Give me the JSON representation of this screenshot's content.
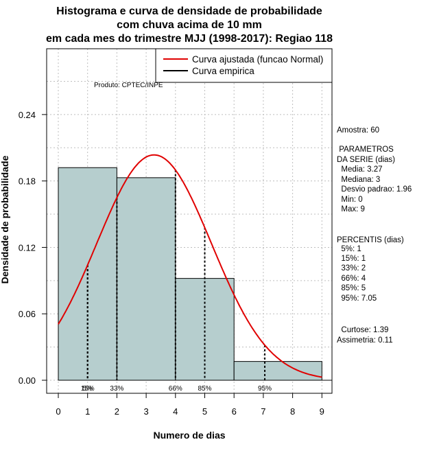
{
  "chart_data": {
    "type": "bar",
    "title_lines": [
      "Histograma e curva de densidade de probabilidade",
      "com chuva acima de 10 mm",
      "em cada mes do trimestre MJJ (1998-2017): Regiao 118"
    ],
    "xlabel": "Numero de dias",
    "ylabel": "Densidade de probabilidade",
    "xlim": [
      0,
      9
    ],
    "ylim": [
      0,
      0.24
    ],
    "x_ticks": [
      "0",
      "1",
      "2",
      "3",
      "4",
      "5",
      "6",
      "7",
      "8",
      "9"
    ],
    "y_ticks": [
      "0.00",
      "0.06",
      "0.12",
      "0.18",
      "0.24"
    ],
    "bins": [
      {
        "from": 0,
        "to": 2,
        "density": 0.192
      },
      {
        "from": 2,
        "to": 4,
        "density": 0.183
      },
      {
        "from": 4,
        "to": 6,
        "density": 0.092
      },
      {
        "from": 6,
        "to": 9,
        "density": 0.017
      }
    ],
    "normal_fit": {
      "mean": 3.27,
      "sd": 1.96,
      "x_from": 0,
      "x_to": 9
    },
    "percentile_lines": [
      {
        "x": 1,
        "label": "5%"
      },
      {
        "x": 1,
        "label": "15%"
      },
      {
        "x": 2,
        "label": "33%"
      },
      {
        "x": 4,
        "label": "66%"
      },
      {
        "x": 5,
        "label": "85%"
      },
      {
        "x": 7.05,
        "label": "95%"
      }
    ],
    "legend": {
      "position": "top-right",
      "items": [
        {
          "label": "Curva ajustada (funcao Normal)",
          "color": "#e00000"
        },
        {
          "label": "Curva empirica",
          "color": "#000000"
        }
      ]
    },
    "annotation": "Produto: CPTEC/INPE",
    "stats_panel": [
      "Amostra: 60",
      " PARAMETROS",
      "DA SERIE (dias)",
      "  Media: 3.27",
      "  Mediana: 3",
      "  Desvio padrao: 1.96",
      "  Min: 0",
      "  Max: 9",
      "PERCENTIS (dias)",
      "  5%: 1",
      "  15%: 1",
      "  33%: 2",
      "  66%: 4",
      "  85%: 5",
      "  95%: 7.05",
      "  Curtose: 1.39",
      "Assimetria: 0.11"
    ],
    "colors": {
      "bar_fill": "#b6cece",
      "curve": "#e00000",
      "grid": "#bdbdbd"
    }
  }
}
